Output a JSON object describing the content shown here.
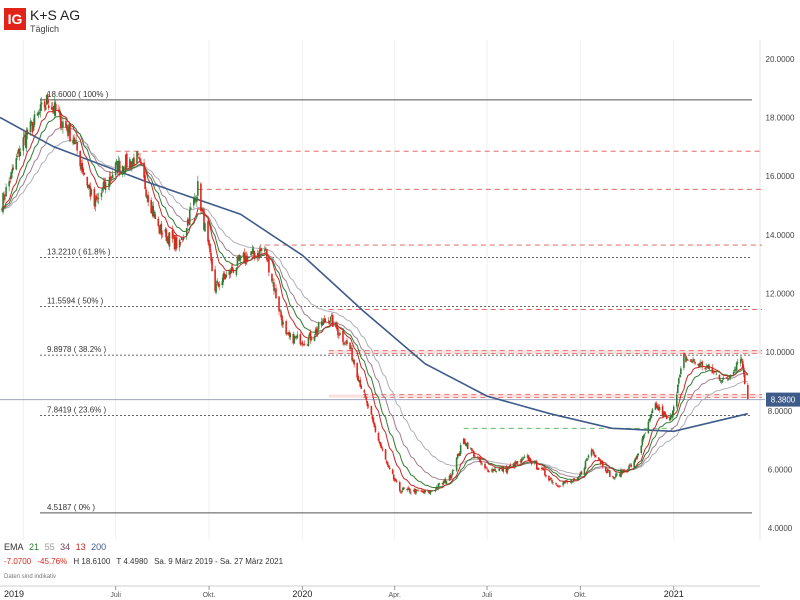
{
  "header": {
    "logo": "IG",
    "title": "K+S AG",
    "subtitle": "Täglich"
  },
  "legend": {
    "label": "EMA",
    "periods": [
      {
        "text": "21",
        "color": "#2e7d32"
      },
      {
        "text": "55",
        "color": "#999999"
      },
      {
        "text": "34",
        "color": "#7b3f5a"
      },
      {
        "text": "13",
        "color": "#c62828"
      },
      {
        "text": "200",
        "color": "#3f5b8a"
      }
    ]
  },
  "stats": {
    "change": "-7.0700",
    "change_pct": "-45.76%",
    "high": "H 18.6100",
    "low": "T 4.4980",
    "range": "Sa. 9 März 2019 - Sa. 27 März 2021"
  },
  "data_note": "Daten sind indikativ",
  "colors": {
    "up": "#2e7d32",
    "down": "#e2231a",
    "accent": "#e2231a",
    "ema200": "#3f5b8a",
    "current_badge": "#3f5b8a"
  },
  "chart_data": {
    "type": "candlestick",
    "title": "K+S AG",
    "subtitle": "Täglich",
    "interval": "daily",
    "x_range": [
      "2019-03-09",
      "2021-03-27"
    ],
    "x_tick_labels": [
      "2019",
      "Juli",
      "Okt.",
      "2020",
      "Apr.",
      "Juli",
      "Okt.",
      "2021"
    ],
    "y_tick_labels": [
      "20.0000",
      "18.0000",
      "16.0000",
      "14.0000",
      "12.0000",
      "10.0000",
      "8.0000",
      "6.0000",
      "4.0000"
    ],
    "ylim": [
      3.9,
      20.3
    ],
    "current_price": "8.3800",
    "high": 18.61,
    "low": 4.498,
    "close_path": [
      [
        "2019-03-09",
        14.9
      ],
      [
        "2019-04-01",
        17.2
      ],
      [
        "2019-04-25",
        18.6
      ],
      [
        "2019-05-20",
        17.3
      ],
      [
        "2019-06-10",
        15.0
      ],
      [
        "2019-07-01",
        16.3
      ],
      [
        "2019-07-22",
        16.6
      ],
      [
        "2019-08-12",
        14.2
      ],
      [
        "2019-09-02",
        13.6
      ],
      [
        "2019-09-20",
        15.6
      ],
      [
        "2019-10-07",
        12.2
      ],
      [
        "2019-11-04",
        13.2
      ],
      [
        "2019-11-25",
        13.5
      ],
      [
        "2019-12-16",
        10.5
      ],
      [
        "2020-01-06",
        10.4
      ],
      [
        "2020-01-27",
        11.2
      ],
      [
        "2020-02-17",
        10.1
      ],
      [
        "2020-03-01",
        8.6
      ],
      [
        "2020-03-16",
        7.0
      ],
      [
        "2020-03-26",
        6.0
      ],
      [
        "2020-04-06",
        5.3
      ],
      [
        "2020-05-04",
        5.2
      ],
      [
        "2020-05-25",
        5.7
      ],
      [
        "2020-06-08",
        7.0
      ],
      [
        "2020-06-29",
        6.0
      ],
      [
        "2020-07-20",
        6.0
      ],
      [
        "2020-08-10",
        6.4
      ],
      [
        "2020-09-07",
        5.5
      ],
      [
        "2020-09-28",
        5.6
      ],
      [
        "2020-10-12",
        6.7
      ],
      [
        "2020-11-02",
        5.7
      ],
      [
        "2020-11-23",
        6.2
      ],
      [
        "2020-12-14",
        8.2
      ],
      [
        "2020-12-28",
        7.6
      ],
      [
        "2021-01-11",
        9.8
      ],
      [
        "2021-02-01",
        9.5
      ],
      [
        "2021-02-22",
        9.0
      ],
      [
        "2021-03-08",
        9.9
      ],
      [
        "2021-03-15",
        8.4
      ]
    ],
    "ema200_path": [
      [
        "2019-03-09",
        18.0
      ],
      [
        "2019-05-01",
        17.0
      ],
      [
        "2019-08-01",
        15.8
      ],
      [
        "2019-11-01",
        14.7
      ],
      [
        "2020-01-01",
        13.3
      ],
      [
        "2020-03-01",
        11.4
      ],
      [
        "2020-05-01",
        9.6
      ],
      [
        "2020-07-01",
        8.5
      ],
      [
        "2020-09-01",
        7.9
      ],
      [
        "2020-11-01",
        7.4
      ],
      [
        "2021-01-01",
        7.3
      ],
      [
        "2021-03-15",
        7.9
      ]
    ],
    "fibonacci": {
      "levels": [
        {
          "label": "18.6000 ( 100% )",
          "value": 18.6
        },
        {
          "label": "13.2210 ( 61.8% )",
          "value": 13.221
        },
        {
          "label": "11.5594 ( 50% )",
          "value": 11.5594
        },
        {
          "label": "9.8978 ( 38.2% )",
          "value": 9.8978
        },
        {
          "label": "7.8419 ( 23.6% )",
          "value": 7.8419
        },
        {
          "label": "4.5187 ( 0% )",
          "value": 4.5187
        }
      ]
    },
    "horizontal_line": 8.38,
    "resistance_lines": [
      {
        "value": 16.85,
        "from": "2019-07-01"
      },
      {
        "value": 15.55,
        "from": "2019-09-20"
      },
      {
        "value": 13.65,
        "from": "2019-11-25"
      },
      {
        "value": 11.45,
        "from": "2020-01-27"
      },
      {
        "value": 10.05,
        "from": "2020-01-27"
      },
      {
        "value": 9.95,
        "from": "2020-01-27"
      },
      {
        "value": 8.55,
        "from": "2020-03-01"
      },
      {
        "value": 8.45,
        "from": "2020-03-01"
      }
    ],
    "support_line": {
      "value": 7.4,
      "from": "2020-06-08",
      "to": "2021-01-01"
    }
  }
}
